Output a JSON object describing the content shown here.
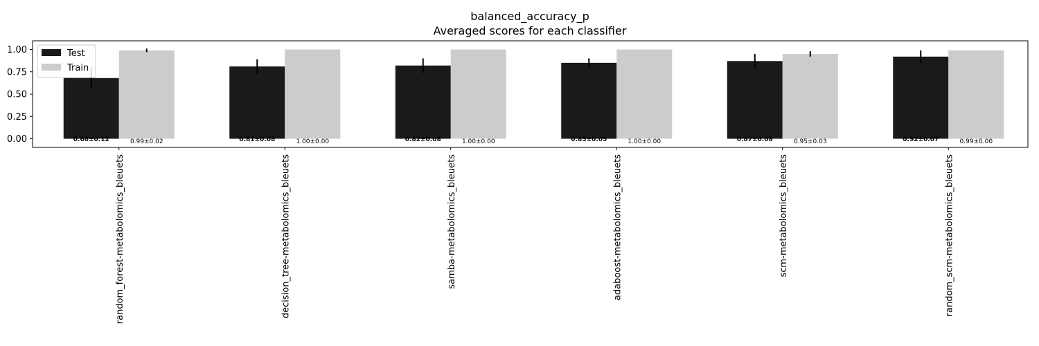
{
  "chart_data": {
    "type": "bar",
    "title": "balanced_accuracy_p",
    "subtitle": "Averaged scores for each classifier",
    "categories": [
      "random_forest-metabolomics_bleuets",
      "decision_tree-metabolomics_bleuets",
      "samba-metabolomics_bleuets",
      "adaboost-metabolomics_bleuets",
      "scm-metabolomics_bleuets",
      "random_scm-metabolomics_bleuets"
    ],
    "series": [
      {
        "name": "Test",
        "color": "#1a1a1a",
        "values": [
          0.68,
          0.81,
          0.82,
          0.85,
          0.87,
          0.92
        ],
        "errors": [
          0.12,
          0.08,
          0.08,
          0.05,
          0.08,
          0.07
        ],
        "labels": [
          "0.68±0.12",
          "0.81±0.08",
          "0.82±0.08",
          "0.85±0.05",
          "0.87±0.08",
          "0.92±0.07"
        ]
      },
      {
        "name": "Train",
        "color": "#cccccc",
        "values": [
          0.99,
          1.0,
          1.0,
          1.0,
          0.95,
          0.99
        ],
        "errors": [
          0.02,
          0.0,
          0.0,
          0.0,
          0.03,
          0.0
        ],
        "labels": [
          "0.99±0.02",
          "1.00±0.00",
          "1.00±0.00",
          "1.00±0.00",
          "0.95±0.03",
          "0.99±0.00"
        ]
      }
    ],
    "yticks": [
      "0.00",
      "0.25",
      "0.50",
      "0.75",
      "1.00"
    ],
    "ytick_values": [
      0,
      0.25,
      0.5,
      0.75,
      1.0
    ],
    "ylim": [
      -0.1,
      1.1
    ],
    "xlabel": "",
    "ylabel": "",
    "grid": false,
    "legend_position": "top-left"
  }
}
